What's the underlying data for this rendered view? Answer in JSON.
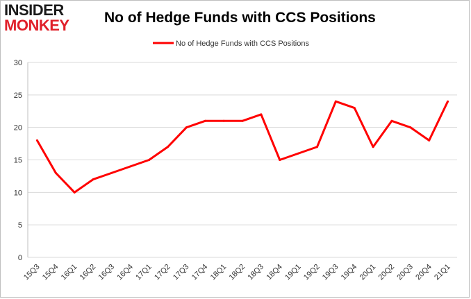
{
  "logo": {
    "line1": "INSIDER",
    "line2": "MONKEY"
  },
  "colors": {
    "series": "#ff0000",
    "grid": "#d9d9d9",
    "logo_accent": "#e0202a"
  },
  "chart_data": {
    "type": "line",
    "title": "No of Hedge Funds with CCS Positions",
    "xlabel": "",
    "ylabel": "",
    "ylim": [
      0,
      30
    ],
    "yticks": [
      0,
      5,
      10,
      15,
      20,
      25,
      30
    ],
    "grid": true,
    "legend_placement": "top-center",
    "categories": [
      "15Q3",
      "15Q4",
      "16Q1",
      "16Q2",
      "16Q3",
      "16Q4",
      "17Q1",
      "17Q2",
      "17Q3",
      "17Q4",
      "18Q1",
      "18Q2",
      "18Q3",
      "18Q4",
      "19Q1",
      "19Q2",
      "19Q3",
      "19Q4",
      "20Q1",
      "20Q2",
      "20Q3",
      "20Q4",
      "21Q1"
    ],
    "series": [
      {
        "name": "No of Hedge Funds with CCS Positions",
        "values": [
          18,
          13,
          10,
          12,
          13,
          14,
          15,
          17,
          20,
          21,
          21,
          21,
          22,
          15,
          16,
          17,
          24,
          23,
          17,
          21,
          20,
          18,
          24
        ]
      }
    ]
  }
}
